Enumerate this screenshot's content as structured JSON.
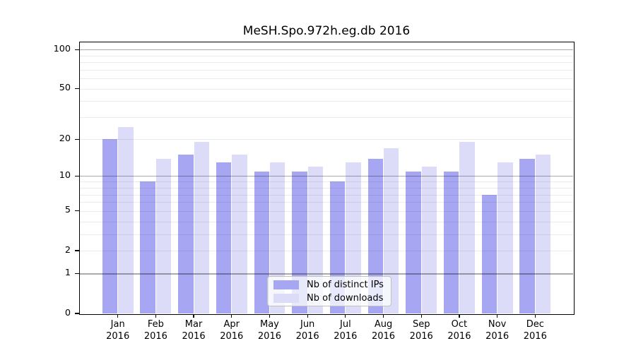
{
  "chart_data": {
    "type": "bar",
    "title": "MeSH.Spo.972h.eg.db 2016",
    "categories": [
      "Jan",
      "Feb",
      "Mar",
      "Apr",
      "May",
      "Jun",
      "Jul",
      "Aug",
      "Sep",
      "Oct",
      "Nov",
      "Dec"
    ],
    "year_label": "2016",
    "series": [
      {
        "name": "Nb of distinct IPs",
        "color": "#a6a6f2",
        "values": [
          20,
          9,
          15,
          13,
          11,
          11,
          9,
          14,
          11,
          11,
          7,
          14
        ]
      },
      {
        "name": "Nb of downloads",
        "color": "#dcdcf8",
        "values": [
          25,
          14,
          19,
          15,
          13,
          12,
          13,
          17,
          12,
          19,
          13,
          15
        ]
      }
    ],
    "xlabel": "",
    "ylabel": "",
    "y_scale": "log1p",
    "ylim": [
      0,
      114
    ],
    "y_ticks": [
      0,
      1,
      2,
      5,
      10,
      20,
      50,
      100
    ],
    "grid": {
      "major": [
        1,
        10,
        100
      ],
      "minor": [
        2,
        3,
        4,
        5,
        6,
        7,
        8,
        9,
        20,
        30,
        40,
        50,
        60,
        70,
        80,
        90
      ]
    },
    "legend_position": "lower center",
    "colors": {
      "grid_major": "rgba(0,0,0,0.33)",
      "grid_minor": "rgba(0,0,0,0.08)",
      "axis": "#000000",
      "text": "#000000",
      "background": "#ffffff"
    }
  }
}
